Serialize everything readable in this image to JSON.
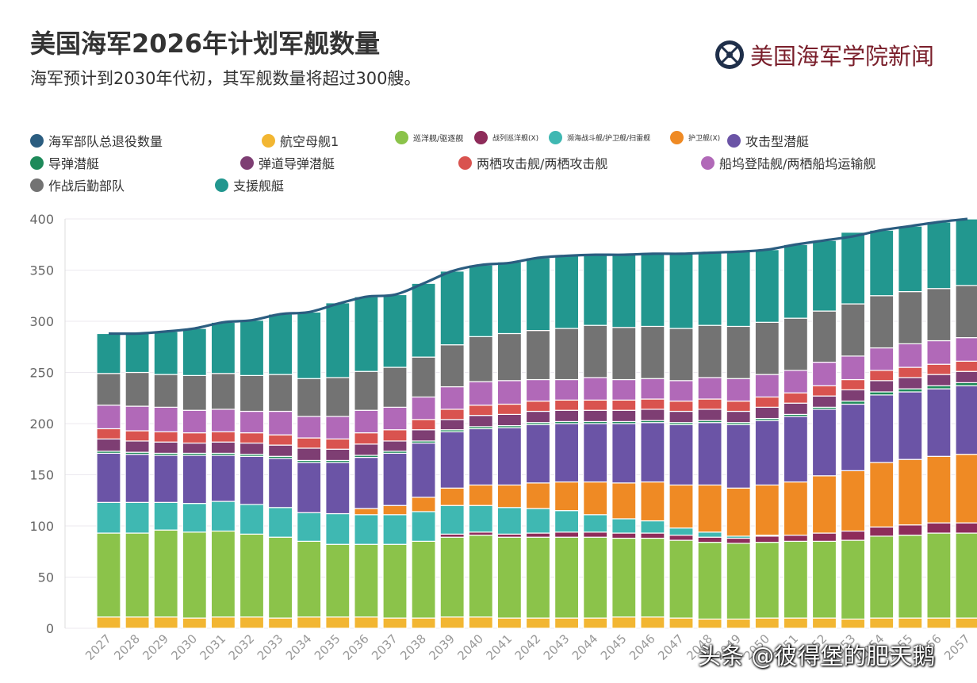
{
  "header": {
    "title": "美国海军2026年计划军舰数量",
    "subtitle": "海军预计到2030年代初，其军舰数量将超过300艘。"
  },
  "brand": {
    "name": "美国海军学院新闻",
    "icon": "anchor-seal-icon"
  },
  "watermark": "头条 @彼得堡的肥天鹅",
  "colors": {
    "total_line": "#2b5d80",
    "gridline": "#ece9ef",
    "tick_text": "#666666"
  },
  "chart_data": {
    "type": "bar",
    "stacked": true,
    "title": "美国海军2026年计划军舰数量",
    "subtitle": "海军预计到2030年代初，其军舰数量将超过300艘。",
    "xlabel": "",
    "ylabel": "",
    "ylim": [
      0,
      400
    ],
    "yticks": [
      0,
      50,
      100,
      150,
      200,
      250,
      300,
      350,
      400
    ],
    "grid": true,
    "legend_position": "top",
    "categories": [
      "2027",
      "2028",
      "2029",
      "2030",
      "2031",
      "2032",
      "2033",
      "2034",
      "2035",
      "2036",
      "2037",
      "2038",
      "2039",
      "2040",
      "2041",
      "2042",
      "2043",
      "2044",
      "2045",
      "2046",
      "2047",
      "2048",
      "2049",
      "2050",
      "2051",
      "2052",
      "2053",
      "2054",
      "2055",
      "2056",
      "2057"
    ],
    "line": {
      "name": "海军部队总退役数量",
      "color": "#2b5d80",
      "values": [
        288,
        288,
        290,
        293,
        299,
        301,
        307,
        309,
        317,
        324,
        326,
        337,
        349,
        355,
        357,
        362,
        364,
        365,
        365,
        366,
        366,
        367,
        368,
        370,
        375,
        379,
        383,
        389,
        393,
        397,
        400
      ]
    },
    "series": [
      {
        "name": "航空母舰1",
        "color": "#f2b632",
        "values": [
          11,
          11,
          11,
          10,
          11,
          11,
          10,
          11,
          11,
          11,
          10,
          10,
          11,
          11,
          10,
          10,
          10,
          10,
          11,
          11,
          10,
          9,
          9,
          10,
          10,
          10,
          9,
          10,
          10,
          10,
          10
        ]
      },
      {
        "name": "巡洋舰/驱逐舰",
        "color": "#8bc34a",
        "values": [
          82,
          82,
          85,
          84,
          84,
          81,
          79,
          74,
          71,
          71,
          72,
          75,
          78,
          80,
          79,
          79,
          79,
          79,
          77,
          77,
          76,
          75,
          74,
          74,
          75,
          75,
          77,
          80,
          81,
          83,
          83
        ]
      },
      {
        "name": "战列巡洋舰(X)",
        "color": "#8e2c5a",
        "values": [
          0,
          0,
          0,
          0,
          0,
          0,
          0,
          0,
          0,
          0,
          0,
          0,
          3,
          3,
          3,
          4,
          5,
          5,
          5,
          5,
          5,
          5,
          5,
          6,
          6,
          8,
          9,
          9,
          10,
          10,
          10
        ]
      },
      {
        "name": "濒海战斗舰/护卫舰/扫雷舰",
        "color": "#3fb8b2",
        "values": [
          30,
          30,
          27,
          28,
          29,
          29,
          29,
          28,
          30,
          29,
          29,
          29,
          28,
          26,
          26,
          24,
          21,
          17,
          14,
          12,
          7,
          5,
          2,
          1,
          0,
          0,
          0,
          0,
          0,
          0,
          0
        ]
      },
      {
        "name": "护卫舰(X)",
        "color": "#ef8a24",
        "values": [
          0,
          0,
          0,
          0,
          0,
          0,
          0,
          0,
          0,
          6,
          9,
          14,
          17,
          20,
          22,
          25,
          28,
          32,
          35,
          38,
          42,
          46,
          47,
          49,
          52,
          56,
          59,
          63,
          64,
          65,
          67
        ]
      },
      {
        "name": "攻击型潜艇",
        "color": "#6b54a6",
        "values": [
          48,
          47,
          46,
          47,
          45,
          47,
          48,
          49,
          50,
          50,
          51,
          53,
          55,
          55,
          56,
          57,
          57,
          57,
          58,
          58,
          59,
          61,
          62,
          63,
          64,
          65,
          65,
          66,
          66,
          66,
          67
        ]
      },
      {
        "name": "导弹潜艇",
        "color": "#1e8a5a",
        "values": [
          2,
          2,
          2,
          2,
          2,
          2,
          2,
          2,
          2,
          2,
          2,
          2,
          2,
          2,
          2,
          2,
          2,
          2,
          2,
          2,
          2,
          2,
          2,
          2,
          2,
          2,
          3,
          3,
          3,
          3,
          3
        ]
      },
      {
        "name": "弹道导弹潜艇",
        "color": "#7e3e73",
        "values": [
          12,
          11,
          11,
          10,
          11,
          11,
          11,
          12,
          11,
          11,
          10,
          11,
          10,
          11,
          11,
          11,
          11,
          11,
          11,
          11,
          11,
          11,
          11,
          11,
          11,
          11,
          11,
          11,
          11,
          11,
          11
        ]
      },
      {
        "name": "两栖攻击舰/两栖攻击舰",
        "color": "#d9534f",
        "values": [
          10,
          10,
          10,
          10,
          10,
          10,
          10,
          10,
          10,
          11,
          11,
          10,
          10,
          10,
          10,
          10,
          10,
          10,
          10,
          10,
          10,
          10,
          10,
          10,
          10,
          10,
          10,
          10,
          10,
          10,
          10
        ]
      },
      {
        "name": "船坞登陆舰/两栖船坞运输舰",
        "color": "#b169b8",
        "values": [
          23,
          24,
          24,
          22,
          22,
          21,
          23,
          21,
          22,
          22,
          22,
          22,
          22,
          23,
          23,
          21,
          20,
          22,
          20,
          20,
          20,
          21,
          22,
          22,
          22,
          23,
          23,
          22,
          23,
          23,
          23
        ]
      },
      {
        "name": "作战后勤部队",
        "color": "#737373",
        "values": [
          31,
          33,
          32,
          34,
          35,
          35,
          36,
          37,
          38,
          38,
          39,
          39,
          41,
          44,
          46,
          48,
          50,
          51,
          51,
          51,
          51,
          51,
          51,
          51,
          51,
          50,
          51,
          51,
          51,
          51,
          51
        ]
      },
      {
        "name": "支援舰艇",
        "color": "#22978f",
        "values": [
          39,
          38,
          42,
          46,
          50,
          54,
          59,
          65,
          73,
          73,
          71,
          72,
          72,
          70,
          70,
          71,
          71,
          69,
          71,
          72,
          73,
          72,
          73,
          71,
          72,
          69,
          70,
          64,
          64,
          65,
          65
        ]
      }
    ]
  }
}
